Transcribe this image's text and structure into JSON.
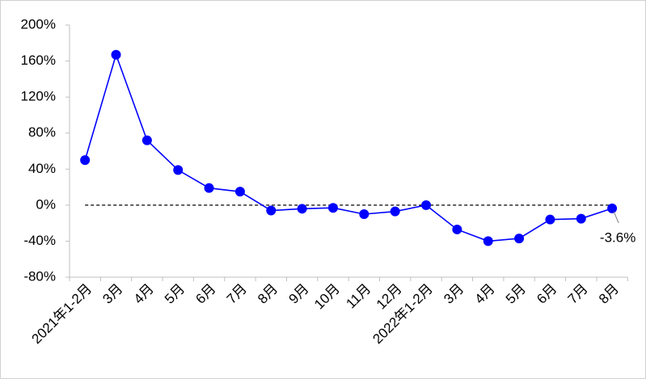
{
  "chart_data": {
    "type": "line",
    "categories": [
      "2021年1-2月",
      "3月",
      "4月",
      "5月",
      "6月",
      "7月",
      "8月",
      "9月",
      "10月",
      "11月",
      "12月",
      "2022年1-2月",
      "3月",
      "4月",
      "5月",
      "6月",
      "7月",
      "8月"
    ],
    "series": [
      {
        "color": "#0000ff",
        "values": [
          50,
          167,
          72,
          39,
          19,
          15,
          -6,
          -4,
          -3,
          -10,
          -7,
          0,
          -27,
          -40,
          -37,
          -16,
          -15,
          -3.6
        ],
        "value_labels": [
          null,
          null,
          null,
          null,
          null,
          null,
          null,
          null,
          null,
          null,
          null,
          null,
          null,
          null,
          null,
          null,
          null,
          "-3.6%"
        ]
      }
    ],
    "ylim": [
      -80,
      200
    ],
    "yticks": [
      {
        "value": -80,
        "label": "-80%"
      },
      {
        "value": -40,
        "label": "-40%"
      },
      {
        "value": 0,
        "label": "0%"
      },
      {
        "value": 40,
        "label": "40%"
      },
      {
        "value": 80,
        "label": "80%"
      },
      {
        "value": 120,
        "label": "120%"
      },
      {
        "value": 160,
        "label": "160%"
      },
      {
        "value": 200,
        "label": "200%"
      }
    ],
    "reference_line": 0,
    "grid": false
  }
}
